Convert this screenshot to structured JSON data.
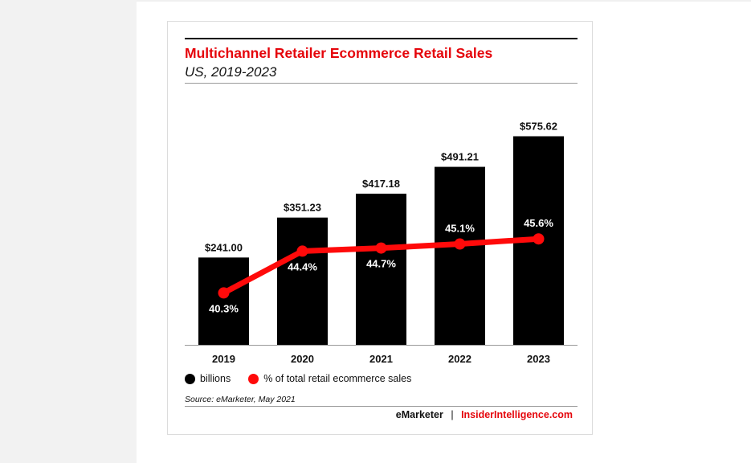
{
  "colors": {
    "bar": "#000000",
    "line": "#ff0a0a",
    "title": "#e5050b"
  },
  "chart_data": {
    "type": "bar",
    "title": "Multichannel Retailer Ecommerce Retail Sales",
    "subtitle": "US, 2019-2023",
    "categories": [
      "2019",
      "2020",
      "2021",
      "2022",
      "2023"
    ],
    "series": [
      {
        "name": "billions",
        "type": "bar",
        "values": [
          241.0,
          351.23,
          417.18,
          491.21,
          575.62
        ],
        "labels": [
          "$241.00",
          "$351.23",
          "$417.18",
          "$491.21",
          "$575.62"
        ]
      },
      {
        "name": "% of total retail ecommerce sales",
        "type": "line",
        "values": [
          40.3,
          44.4,
          44.7,
          45.1,
          45.6
        ],
        "labels": [
          "40.3%",
          "44.4%",
          "44.7%",
          "45.1%",
          "45.6%"
        ]
      }
    ],
    "legend_position": "bottom-left",
    "grid": false
  },
  "source": "Source: eMarketer, May 2021",
  "footer": {
    "brand": "eMarketer",
    "separator": "|",
    "site": "InsiderIntelligence.com"
  }
}
